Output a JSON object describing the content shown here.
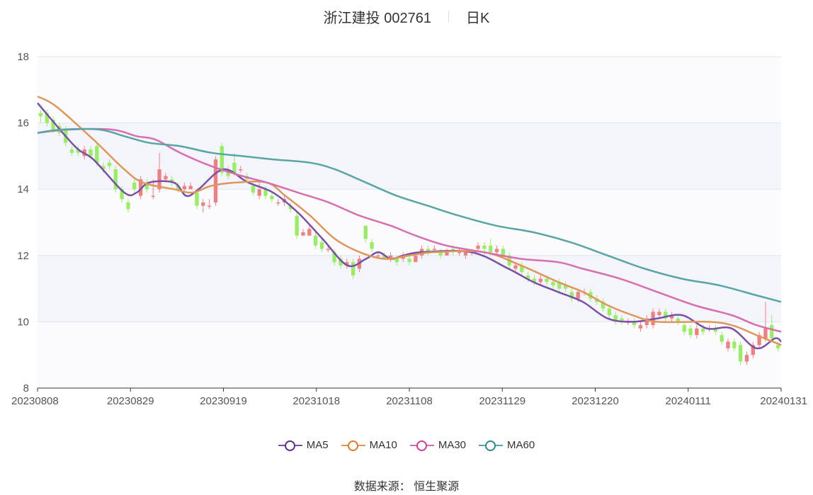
{
  "header": {
    "title": "浙江建投 002761",
    "period": "日K"
  },
  "footer": {
    "source": "数据来源： 恒生聚源"
  },
  "colors": {
    "up": "#f08080",
    "down": "#98ee62",
    "ma5": "#7a4fa8",
    "ma10": "#e0955a",
    "ma30": "#d86eb0",
    "ma60": "#58a5a5",
    "band": "#f3f5fb",
    "axis": "#333333",
    "grid": "#e0e6f1"
  },
  "chart_data": {
    "type": "candlestick",
    "y_ticks": [
      "8",
      "10",
      "12",
      "14",
      "16",
      "18"
    ],
    "ylim": [
      8,
      18
    ],
    "x_tick_labels": [
      "20230808",
      "20230829",
      "20230919",
      "20231018",
      "20231108",
      "20231129",
      "20231220",
      "20240111",
      "20240131"
    ],
    "legend": [
      "MA5",
      "MA10",
      "MA30",
      "MA60"
    ],
    "n_days": 119,
    "candles": [
      [
        16.3,
        16.2,
        16.4,
        16.0
      ],
      [
        16.3,
        16.0,
        16.4,
        15.9
      ],
      [
        16.1,
        15.8,
        16.2,
        15.7
      ],
      [
        15.9,
        15.7,
        16.0,
        15.6
      ],
      [
        15.8,
        15.4,
        15.9,
        15.3
      ],
      [
        15.2,
        15.1,
        15.3,
        15.0
      ],
      [
        15.2,
        15.1,
        15.3,
        15.0
      ],
      [
        15.0,
        15.2,
        15.3,
        14.9
      ],
      [
        15.2,
        15.0,
        15.3,
        14.9
      ],
      [
        15.3,
        14.8,
        15.4,
        14.7
      ],
      [
        14.7,
        14.6,
        14.8,
        14.5
      ],
      [
        14.8,
        14.7,
        14.9,
        14.6
      ],
      [
        14.6,
        14.0,
        14.7,
        13.9
      ],
      [
        14.0,
        13.7,
        14.1,
        13.6
      ],
      [
        13.6,
        13.4,
        13.7,
        13.3
      ],
      [
        14.2,
        14.0,
        14.3,
        13.9
      ],
      [
        13.8,
        14.3,
        14.4,
        13.7
      ],
      [
        14.2,
        14.0,
        14.3,
        13.9
      ],
      [
        13.8,
        13.8,
        14.3,
        13.7
      ],
      [
        14.0,
        14.6,
        15.1,
        13.9
      ],
      [
        14.3,
        14.4,
        14.5,
        14.2
      ],
      [
        14.3,
        14.2,
        14.4,
        14.1
      ],
      [
        14.1,
        14.0,
        14.2,
        13.9
      ],
      [
        14.0,
        14.1,
        14.2,
        13.9
      ],
      [
        14.0,
        14.1,
        14.2,
        14.0
      ],
      [
        13.9,
        13.5,
        14.0,
        13.4
      ],
      [
        13.5,
        13.6,
        13.7,
        13.3
      ],
      [
        13.5,
        13.5,
        13.7,
        13.4
      ],
      [
        13.6,
        14.9,
        15.0,
        13.5
      ],
      [
        15.3,
        14.5,
        15.4,
        14.4
      ],
      [
        14.6,
        14.4,
        14.7,
        14.3
      ],
      [
        14.8,
        14.5,
        15.1,
        14.4
      ],
      [
        14.6,
        14.6,
        14.7,
        14.5
      ],
      [
        14.4,
        14.3,
        14.5,
        14.2
      ],
      [
        14.1,
        13.9,
        14.2,
        13.8
      ],
      [
        13.8,
        14.0,
        14.2,
        13.7
      ],
      [
        14.0,
        13.8,
        14.1,
        13.7
      ],
      [
        13.8,
        13.7,
        13.9,
        13.6
      ],
      [
        13.6,
        13.6,
        13.7,
        13.5
      ],
      [
        13.6,
        13.7,
        13.8,
        13.5
      ],
      [
        13.5,
        13.4,
        13.6,
        13.3
      ],
      [
        13.2,
        12.6,
        13.3,
        12.5
      ],
      [
        12.6,
        12.7,
        12.8,
        12.6
      ],
      [
        12.6,
        12.8,
        12.9,
        12.6
      ],
      [
        12.6,
        12.3,
        12.7,
        12.2
      ],
      [
        12.4,
        12.2,
        12.5,
        12.1
      ],
      [
        12.2,
        12.2,
        12.3,
        12.1
      ],
      [
        12.1,
        11.8,
        12.2,
        11.7
      ],
      [
        11.9,
        11.7,
        12.0,
        11.6
      ],
      [
        11.7,
        11.8,
        11.9,
        11.6
      ],
      [
        11.8,
        11.4,
        11.9,
        11.3
      ],
      [
        11.6,
        11.9,
        12.0,
        11.5
      ],
      [
        12.9,
        12.5,
        12.9,
        12.4
      ],
      [
        12.4,
        12.2,
        12.5,
        12.1
      ],
      [
        12.0,
        12.0,
        12.1,
        11.9
      ],
      [
        12.0,
        11.9,
        12.1,
        11.9
      ],
      [
        11.9,
        12.0,
        12.1,
        11.8
      ],
      [
        11.9,
        11.8,
        12.0,
        11.7
      ],
      [
        11.9,
        12.0,
        12.1,
        11.8
      ],
      [
        11.9,
        11.8,
        12.0,
        11.7
      ],
      [
        11.8,
        12.0,
        12.1,
        11.8
      ],
      [
        12.0,
        12.2,
        12.3,
        11.9
      ],
      [
        12.2,
        12.1,
        12.3,
        12.0
      ],
      [
        12.2,
        12.2,
        12.3,
        12.1
      ],
      [
        12.1,
        12.0,
        12.2,
        11.9
      ],
      [
        12.0,
        12.1,
        12.2,
        12.0
      ],
      [
        12.2,
        12.1,
        12.3,
        12.0
      ],
      [
        12.1,
        12.1,
        12.2,
        12.0
      ],
      [
        12.0,
        12.1,
        12.2,
        11.9
      ],
      [
        12.1,
        12.1,
        12.2,
        12.0
      ],
      [
        12.2,
        12.3,
        12.4,
        12.1
      ],
      [
        12.3,
        12.2,
        12.4,
        12.0
      ],
      [
        12.3,
        12.1,
        12.5,
        12.0
      ],
      [
        12.1,
        12.2,
        12.3,
        12.0
      ],
      [
        12.2,
        12.0,
        12.3,
        11.9
      ],
      [
        12.0,
        11.7,
        12.1,
        11.6
      ],
      [
        11.6,
        11.7,
        11.8,
        11.5
      ],
      [
        11.7,
        11.5,
        11.8,
        11.4
      ],
      [
        11.4,
        11.3,
        11.5,
        11.2
      ],
      [
        11.3,
        11.2,
        11.4,
        11.1
      ],
      [
        11.2,
        11.3,
        11.4,
        11.1
      ],
      [
        11.3,
        11.2,
        11.4,
        11.1
      ],
      [
        11.2,
        11.1,
        11.3,
        11.0
      ],
      [
        11.2,
        11.0,
        11.3,
        10.9
      ],
      [
        11.1,
        11.0,
        11.2,
        10.9
      ],
      [
        10.9,
        10.7,
        11.0,
        10.6
      ],
      [
        10.7,
        10.9,
        11.0,
        10.6
      ],
      [
        10.9,
        10.9,
        11.0,
        10.8
      ],
      [
        10.9,
        10.7,
        11.0,
        10.6
      ],
      [
        10.7,
        10.6,
        10.8,
        10.5
      ],
      [
        10.6,
        10.4,
        10.7,
        10.3
      ],
      [
        10.4,
        10.2,
        10.5,
        10.1
      ],
      [
        10.2,
        10.0,
        10.3,
        9.9
      ],
      [
        10.1,
        10.0,
        10.2,
        9.9
      ],
      [
        10.0,
        10.0,
        10.1,
        9.9
      ],
      [
        10.0,
        9.9,
        10.1,
        9.8
      ],
      [
        9.8,
        9.9,
        10.0,
        9.7
      ],
      [
        9.9,
        10.1,
        10.2,
        9.8
      ],
      [
        9.9,
        10.3,
        10.4,
        9.8
      ],
      [
        10.2,
        10.3,
        10.4,
        10.1
      ],
      [
        10.3,
        10.1,
        10.4,
        10.0
      ],
      [
        10.1,
        10.2,
        10.3,
        10.0
      ],
      [
        10.1,
        10.0,
        10.2,
        9.9
      ],
      [
        9.9,
        9.7,
        10.0,
        9.6
      ],
      [
        9.8,
        9.6,
        9.9,
        9.5
      ],
      [
        9.6,
        9.8,
        9.9,
        9.5
      ],
      [
        9.8,
        9.7,
        9.9,
        9.6
      ],
      [
        9.8,
        9.8,
        9.9,
        9.7
      ],
      [
        9.8,
        9.7,
        9.9,
        9.6
      ],
      [
        9.6,
        9.4,
        9.7,
        9.3
      ],
      [
        9.2,
        9.4,
        9.5,
        9.1
      ],
      [
        9.4,
        9.2,
        9.5,
        9.1
      ],
      [
        9.3,
        8.8,
        9.4,
        8.7
      ],
      [
        8.8,
        9.0,
        9.1,
        8.7
      ],
      [
        9.0,
        9.3,
        9.4,
        8.9
      ],
      [
        9.3,
        9.6,
        9.7,
        9.2
      ],
      [
        9.5,
        9.8,
        10.6,
        9.4
      ],
      [
        9.9,
        9.5,
        10.2,
        9.4
      ],
      [
        9.3,
        9.2,
        9.4,
        9.1
      ]
    ],
    "ma": [
      {
        "name": "MA5",
        "knots": [
          [
            0,
            16.6
          ],
          [
            6,
            15.3
          ],
          [
            9,
            14.9
          ],
          [
            14,
            13.9
          ],
          [
            16,
            13.9
          ],
          [
            18,
            14.2
          ],
          [
            22,
            14.2
          ],
          [
            24,
            13.8
          ],
          [
            26,
            14.0
          ],
          [
            30,
            14.6
          ],
          [
            34,
            14.2
          ],
          [
            38,
            13.9
          ],
          [
            42,
            13.3
          ],
          [
            46,
            12.5
          ],
          [
            50,
            11.7
          ],
          [
            53,
            11.9
          ],
          [
            55,
            12.1
          ],
          [
            57,
            11.9
          ],
          [
            59,
            12.0
          ],
          [
            62,
            12.1
          ],
          [
            70,
            12.1
          ],
          [
            76,
            11.6
          ],
          [
            80,
            11.2
          ],
          [
            84,
            10.9
          ],
          [
            88,
            10.6
          ],
          [
            92,
            10.1
          ],
          [
            96,
            10.0
          ],
          [
            100,
            10.1
          ],
          [
            104,
            10.2
          ],
          [
            108,
            9.8
          ],
          [
            112,
            9.8
          ],
          [
            116,
            9.2
          ],
          [
            119,
            9.5
          ],
          [
            120,
            9.4
          ]
        ]
      },
      {
        "name": "MA10",
        "knots": [
          [
            0,
            16.8
          ],
          [
            3,
            16.5
          ],
          [
            9,
            15.5
          ],
          [
            14,
            14.6
          ],
          [
            17,
            14.2
          ],
          [
            22,
            14.0
          ],
          [
            25,
            13.9
          ],
          [
            28,
            14.1
          ],
          [
            32,
            14.2
          ],
          [
            37,
            14.2
          ],
          [
            40,
            13.8
          ],
          [
            44,
            13.2
          ],
          [
            48,
            12.5
          ],
          [
            52,
            12.1
          ],
          [
            56,
            11.9
          ],
          [
            60,
            12.0
          ],
          [
            64,
            12.1
          ],
          [
            72,
            12.1
          ],
          [
            78,
            11.7
          ],
          [
            84,
            11.2
          ],
          [
            88,
            10.9
          ],
          [
            92,
            10.5
          ],
          [
            96,
            10.2
          ],
          [
            100,
            10.0
          ],
          [
            108,
            10.0
          ],
          [
            112,
            9.9
          ],
          [
            116,
            9.6
          ],
          [
            120,
            9.3
          ]
        ]
      },
      {
        "name": "MA30",
        "knots": [
          [
            0,
            15.7
          ],
          [
            5,
            15.8
          ],
          [
            12,
            15.8
          ],
          [
            16,
            15.6
          ],
          [
            19,
            15.5
          ],
          [
            23,
            15.1
          ],
          [
            28,
            14.7
          ],
          [
            33,
            14.4
          ],
          [
            37,
            14.2
          ],
          [
            42,
            13.9
          ],
          [
            47,
            13.6
          ],
          [
            52,
            13.2
          ],
          [
            57,
            12.9
          ],
          [
            61,
            12.6
          ],
          [
            66,
            12.3
          ],
          [
            72,
            12.1
          ],
          [
            78,
            11.9
          ],
          [
            84,
            11.8
          ],
          [
            88,
            11.6
          ],
          [
            94,
            11.3
          ],
          [
            100,
            10.9
          ],
          [
            106,
            10.5
          ],
          [
            112,
            10.2
          ],
          [
            116,
            9.9
          ],
          [
            120,
            9.7
          ]
        ]
      },
      {
        "name": "MA60",
        "knots": [
          [
            0,
            15.7
          ],
          [
            4,
            15.8
          ],
          [
            10,
            15.8
          ],
          [
            14,
            15.6
          ],
          [
            18,
            15.4
          ],
          [
            23,
            15.3
          ],
          [
            28,
            15.1
          ],
          [
            33,
            15.0
          ],
          [
            38,
            14.9
          ],
          [
            44,
            14.8
          ],
          [
            48,
            14.6
          ],
          [
            53,
            14.2
          ],
          [
            58,
            13.8
          ],
          [
            63,
            13.5
          ],
          [
            68,
            13.2
          ],
          [
            74,
            12.9
          ],
          [
            80,
            12.7
          ],
          [
            86,
            12.4
          ],
          [
            92,
            12.0
          ],
          [
            98,
            11.6
          ],
          [
            104,
            11.3
          ],
          [
            110,
            11.1
          ],
          [
            116,
            10.8
          ],
          [
            120,
            10.6
          ]
        ]
      }
    ]
  }
}
